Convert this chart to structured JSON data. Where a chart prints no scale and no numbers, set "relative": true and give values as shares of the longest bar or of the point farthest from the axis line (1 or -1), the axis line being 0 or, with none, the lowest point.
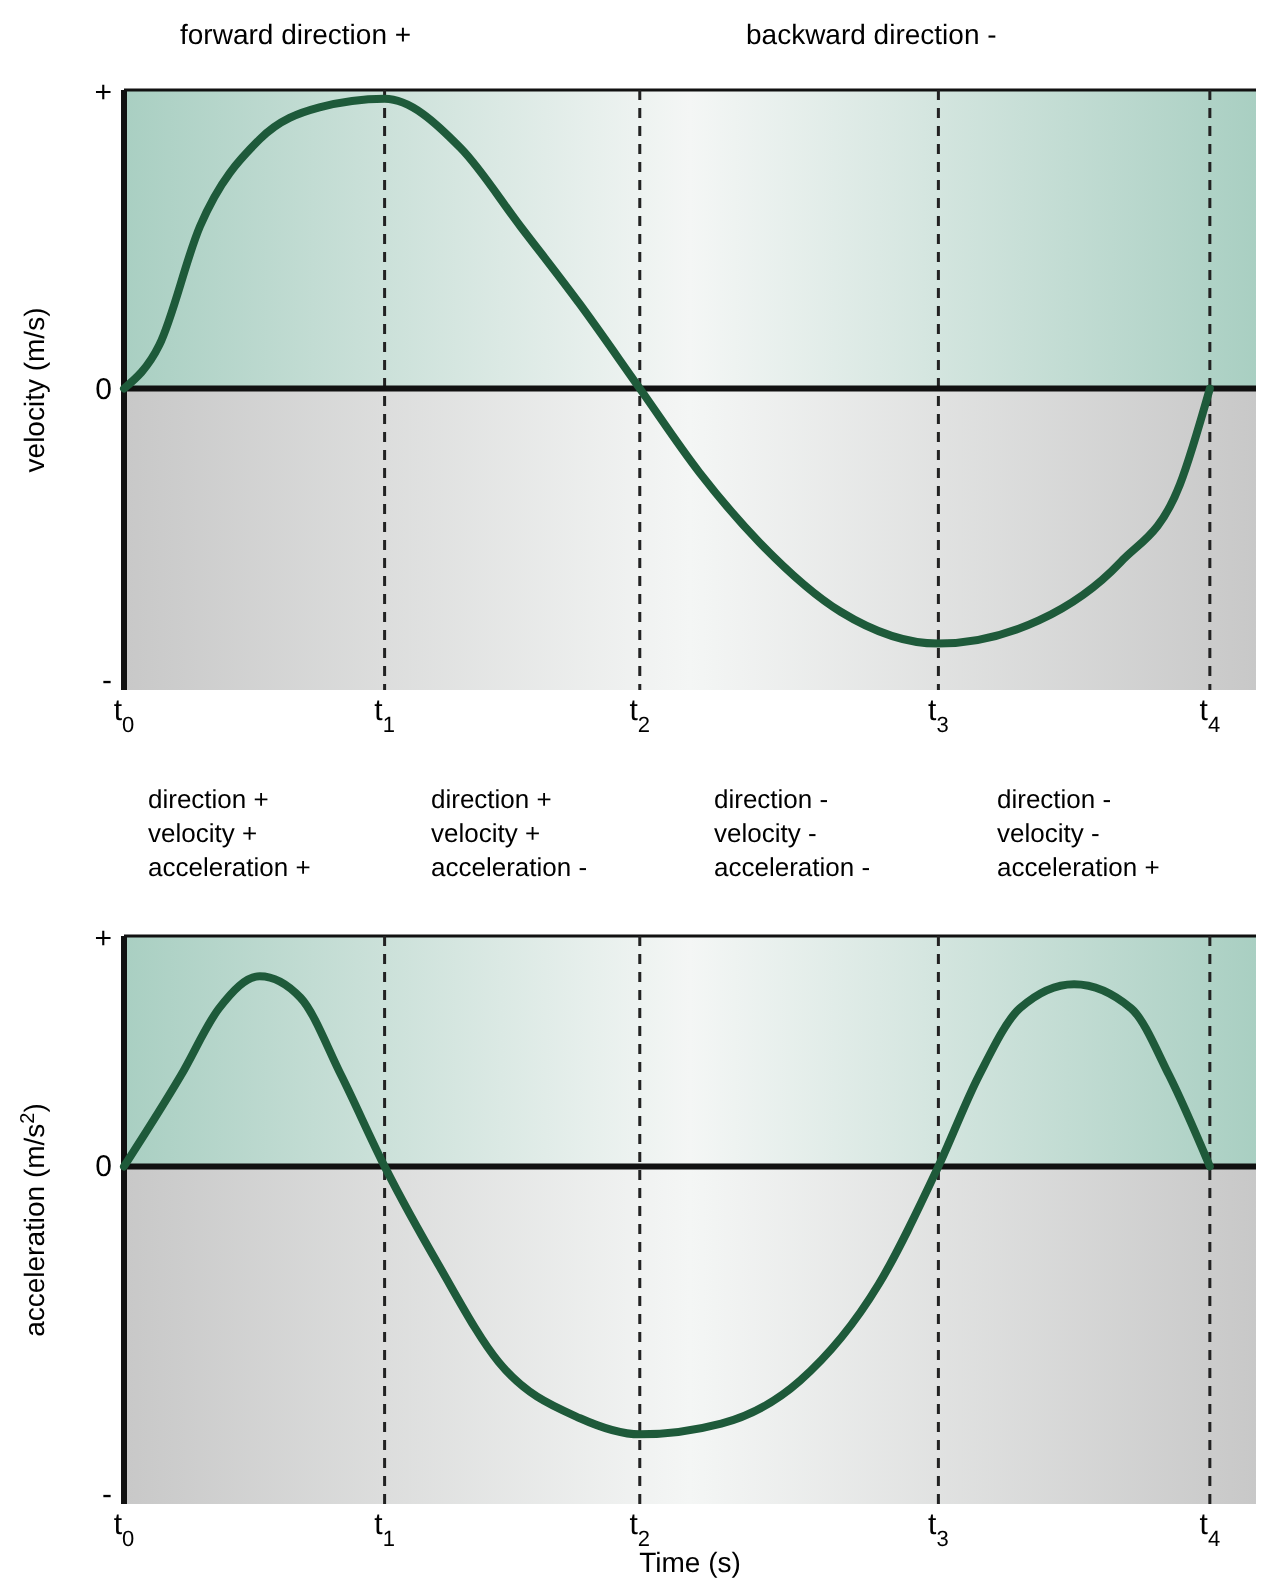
{
  "chart_data": [
    {
      "type": "line",
      "relative": true,
      "ylabel": "velocity (m/s)",
      "xlim": [
        0,
        4.17
      ],
      "xticks": [
        {
          "value": 0,
          "label": "t$_{0}$"
        },
        {
          "value": 0.96,
          "label": "t$_{1}$"
        },
        {
          "value": 1.9,
          "label": "t$_{2}$"
        },
        {
          "value": 3.0,
          "label": "t$_{3}$"
        },
        {
          "value": 4.0,
          "label": "t$_{4}$"
        }
      ],
      "series": [
        {
          "color": "#1e5a3a",
          "x": [
            0,
            0.13,
            0.28,
            0.5,
            0.72,
            0.96,
            1.24,
            1.46,
            1.68,
            1.9,
            2.12,
            2.34,
            2.64,
            3.0,
            3.37,
            3.67,
            3.89,
            4.0
          ],
          "values": [
            0,
            0.15,
            0.56,
            0.86,
            0.97,
            1,
            0.83,
            0.56,
            0.29,
            0,
            -0.29,
            -0.53,
            -0.77,
            -0.88,
            -0.8,
            -0.6,
            -0.33,
            0
          ]
        }
      ],
      "ref_lines": [
        {
          "axis": "x",
          "value": 0.96,
          "color": "#222222",
          "line_style": "dashed"
        },
        {
          "axis": "x",
          "value": 1.9,
          "color": "#222222",
          "line_style": "dashed"
        },
        {
          "axis": "x",
          "value": 3.0,
          "color": "#222222",
          "line_style": "dashed"
        },
        {
          "axis": "x",
          "value": 4.0,
          "color": "#222222",
          "line_style": "dashed"
        }
      ],
      "bands": [
        {
          "axis": "y",
          "from": 0,
          "to": 1.03,
          "color": "#a9cfc2"
        },
        {
          "axis": "y",
          "from": -1.04,
          "to": 0,
          "color": "#c8c8c8"
        }
      ],
      "annotations": [
        "+",
        "0",
        "-",
        "forward direction +",
        "backward direction -"
      ]
    },
    {
      "type": "line",
      "relative": true,
      "xlabel": "Time (s)",
      "ylabel": "acceleration (m/s$^{2}$)",
      "xlim": [
        0,
        4.17
      ],
      "xticks": [
        {
          "value": 0,
          "label": "t$_{0}$"
        },
        {
          "value": 0.96,
          "label": "t$_{1}$"
        },
        {
          "value": 1.9,
          "label": "t$_{2}$"
        },
        {
          "value": 3.0,
          "label": "t$_{3}$"
        },
        {
          "value": 4.0,
          "label": "t$_{4}$"
        }
      ],
      "series": [
        {
          "color": "#1e5a3a",
          "x": [
            0,
            0.21,
            0.35,
            0.5,
            0.65,
            0.8,
            0.96,
            1.16,
            1.38,
            1.68,
            1.9,
            2.2,
            2.49,
            2.78,
            3.0,
            3.15,
            3.3,
            3.5,
            3.71,
            3.85,
            4.0
          ],
          "values": [
            0,
            0.34,
            0.59,
            0.71,
            0.63,
            0.34,
            0,
            -0.37,
            -0.73,
            -0.94,
            -1,
            -0.96,
            -0.8,
            -0.44,
            0,
            0.34,
            0.59,
            0.68,
            0.59,
            0.34,
            0
          ]
        }
      ],
      "ref_lines": [
        {
          "axis": "x",
          "value": 0.96,
          "color": "#222222",
          "line_style": "dashed"
        },
        {
          "axis": "x",
          "value": 1.9,
          "color": "#222222",
          "line_style": "dashed"
        },
        {
          "axis": "x",
          "value": 3.0,
          "color": "#222222",
          "line_style": "dashed"
        },
        {
          "axis": "x",
          "value": 4.0,
          "color": "#222222",
          "line_style": "dashed"
        }
      ],
      "bands": [
        {
          "axis": "y",
          "from": 0,
          "to": 0.86,
          "color": "#a9cfc2"
        },
        {
          "axis": "y",
          "from": -1.26,
          "to": 0,
          "color": "#c8c8c8"
        }
      ],
      "annotations": [
        "+",
        "0",
        "-",
        "direction +\nvelocity +\nacceleration +",
        "direction +\nvelocity +\nacceleration -",
        "direction -\nvelocity -\nacceleration -",
        "direction -\nvelocity -\nacceleration +"
      ]
    }
  ]
}
